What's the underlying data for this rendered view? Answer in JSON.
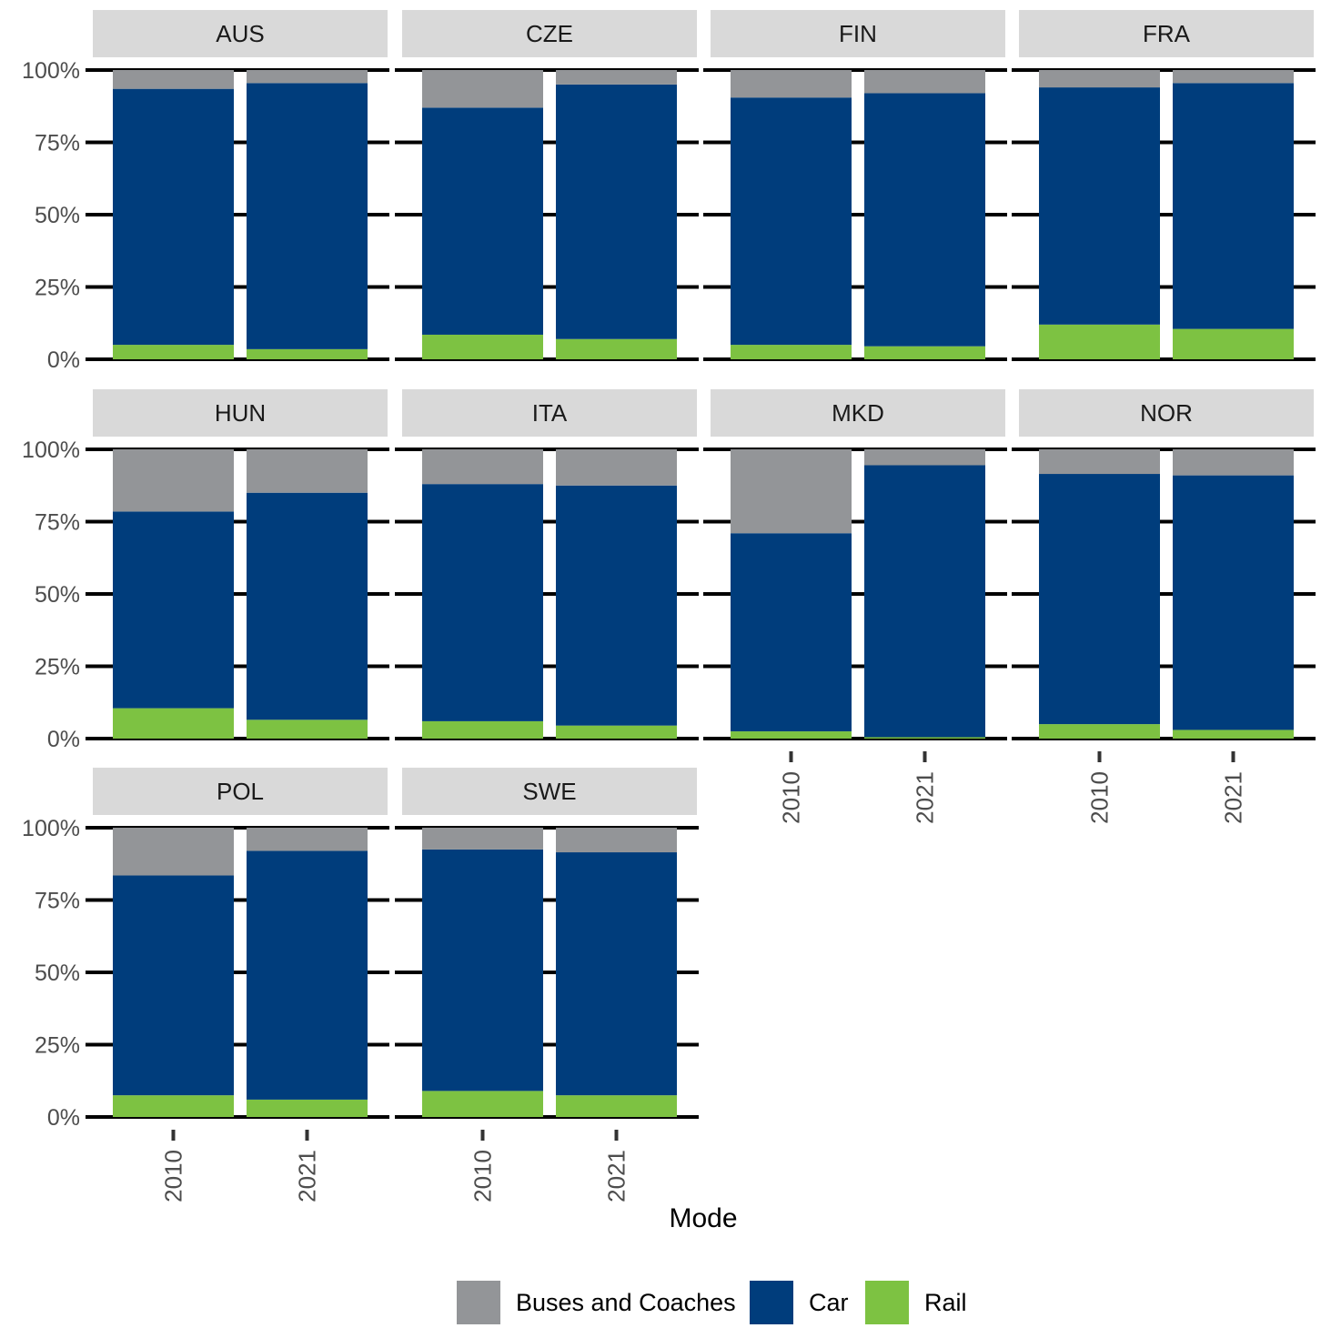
{
  "chart_data": {
    "type": "bar",
    "stacked": true,
    "normalized": true,
    "xlabel": "Mode",
    "ylabel": "",
    "ylim": [
      0,
      1
    ],
    "y_ticks": [
      0,
      0.25,
      0.5,
      0.75,
      1
    ],
    "y_tick_labels": [
      "0%",
      "25%",
      "50%",
      "75%",
      "100%"
    ],
    "categories": [
      "2010",
      "2021"
    ],
    "series_order": [
      "Rail",
      "Car",
      "Buses and Coaches"
    ],
    "colors": {
      "Buses and Coaches": "#939598",
      "Car": "#003d7c",
      "Rail": "#7dc242"
    },
    "legend": {
      "position": "bottom",
      "entries": [
        "Buses and Coaches",
        "Car",
        "Rail"
      ]
    },
    "panels": [
      {
        "name": "AUS",
        "values": {
          "2010": {
            "Rail": 0.05,
            "Car": 0.885,
            "Buses and Coaches": 0.065
          },
          "2021": {
            "Rail": 0.035,
            "Car": 0.92,
            "Buses and Coaches": 0.045
          }
        }
      },
      {
        "name": "CZE",
        "values": {
          "2010": {
            "Rail": 0.085,
            "Car": 0.785,
            "Buses and Coaches": 0.13
          },
          "2021": {
            "Rail": 0.07,
            "Car": 0.88,
            "Buses and Coaches": 0.05
          }
        }
      },
      {
        "name": "FIN",
        "values": {
          "2010": {
            "Rail": 0.05,
            "Car": 0.855,
            "Buses and Coaches": 0.095
          },
          "2021": {
            "Rail": 0.045,
            "Car": 0.875,
            "Buses and Coaches": 0.08
          }
        }
      },
      {
        "name": "FRA",
        "values": {
          "2010": {
            "Rail": 0.12,
            "Car": 0.82,
            "Buses and Coaches": 0.06
          },
          "2021": {
            "Rail": 0.105,
            "Car": 0.85,
            "Buses and Coaches": 0.045
          }
        }
      },
      {
        "name": "HUN",
        "values": {
          "2010": {
            "Rail": 0.105,
            "Car": 0.68,
            "Buses and Coaches": 0.215
          },
          "2021": {
            "Rail": 0.065,
            "Car": 0.785,
            "Buses and Coaches": 0.15
          }
        }
      },
      {
        "name": "ITA",
        "values": {
          "2010": {
            "Rail": 0.06,
            "Car": 0.82,
            "Buses and Coaches": 0.12
          },
          "2021": {
            "Rail": 0.045,
            "Car": 0.83,
            "Buses and Coaches": 0.125
          }
        }
      },
      {
        "name": "MKD",
        "values": {
          "2010": {
            "Rail": 0.025,
            "Car": 0.685,
            "Buses and Coaches": 0.29
          },
          "2021": {
            "Rail": 0.005,
            "Car": 0.94,
            "Buses and Coaches": 0.055
          }
        }
      },
      {
        "name": "NOR",
        "values": {
          "2010": {
            "Rail": 0.05,
            "Car": 0.865,
            "Buses and Coaches": 0.085
          },
          "2021": {
            "Rail": 0.03,
            "Car": 0.88,
            "Buses and Coaches": 0.09
          }
        }
      },
      {
        "name": "POL",
        "values": {
          "2010": {
            "Rail": 0.075,
            "Car": 0.76,
            "Buses and Coaches": 0.165
          },
          "2021": {
            "Rail": 0.06,
            "Car": 0.86,
            "Buses and Coaches": 0.08
          }
        }
      },
      {
        "name": "SWE",
        "values": {
          "2010": {
            "Rail": 0.09,
            "Car": 0.835,
            "Buses and Coaches": 0.075
          },
          "2021": {
            "Rail": 0.075,
            "Car": 0.84,
            "Buses and Coaches": 0.085
          }
        }
      }
    ]
  }
}
